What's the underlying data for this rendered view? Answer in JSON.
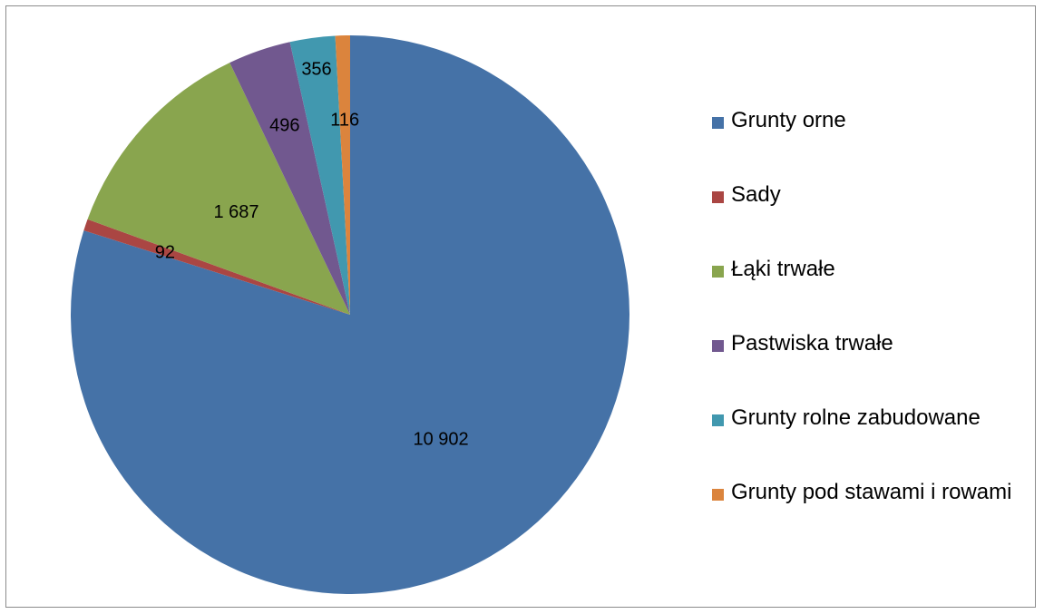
{
  "chart_data": {
    "type": "pie",
    "start_angle": "top",
    "direction": "clockwise",
    "legend_position": "right",
    "slices": [
      {
        "name": "Grunty orne",
        "value": 10902,
        "label": "10 902",
        "color": "#4572A7"
      },
      {
        "name": "Sady",
        "value": 92,
        "label": "92",
        "color": "#AA4643"
      },
      {
        "name": "Łąki trwałe",
        "value": 1687,
        "label": "1 687",
        "color": "#89A54E"
      },
      {
        "name": "Pastwiska trwałe",
        "value": 496,
        "label": "496",
        "color": "#71588F"
      },
      {
        "name": "Grunty rolne zabudowane",
        "value": 356,
        "label": "356",
        "color": "#4198AF"
      },
      {
        "name": "Grunty pod stawami i rowami",
        "value": 116,
        "label": "116",
        "color": "#DB843D"
      }
    ]
  },
  "legend": {
    "items": [
      {
        "label": "Grunty orne",
        "color": "#4572A7"
      },
      {
        "label": "Sady",
        "color": "#AA4643"
      },
      {
        "label": "Łąki trwałe",
        "color": "#89A54E"
      },
      {
        "label": "Pastwiska trwałe",
        "color": "#71588F"
      },
      {
        "label": "Grunty rolne zabudowane",
        "color": "#4198AF"
      },
      {
        "label": "Grunty pod stawami i rowami",
        "color": "#DB843D"
      }
    ]
  }
}
